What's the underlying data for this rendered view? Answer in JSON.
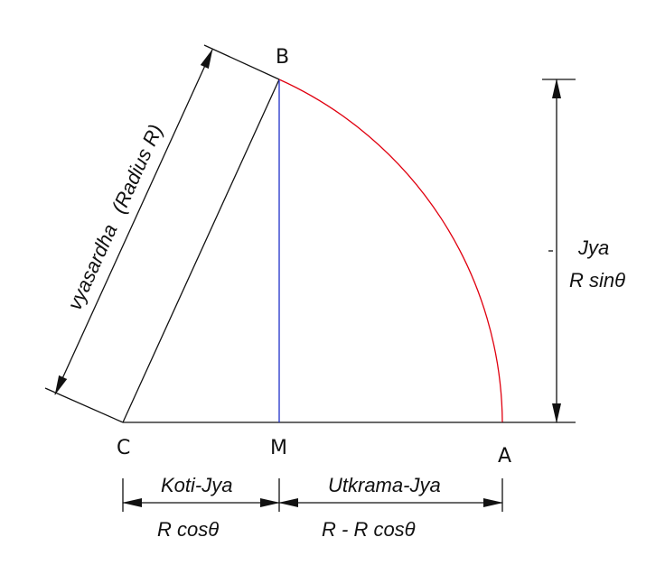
{
  "points": {
    "B": "B",
    "C": "C",
    "M": "M",
    "A": "A"
  },
  "labels": {
    "radius_line1": "vyasardha",
    "radius_line2": "(Radius R)",
    "jya": "Jya",
    "r_sin": "R sinθ",
    "koti_jya": "Koti-Jya",
    "r_cos": "R cosθ",
    "utkrama_jya": "Utkrama-Jya",
    "r_minus_r_cos": "R - R cosθ"
  },
  "colors": {
    "arc": "#e0000f",
    "perpendicular": "#1f2fc8",
    "lines": "#111111"
  }
}
